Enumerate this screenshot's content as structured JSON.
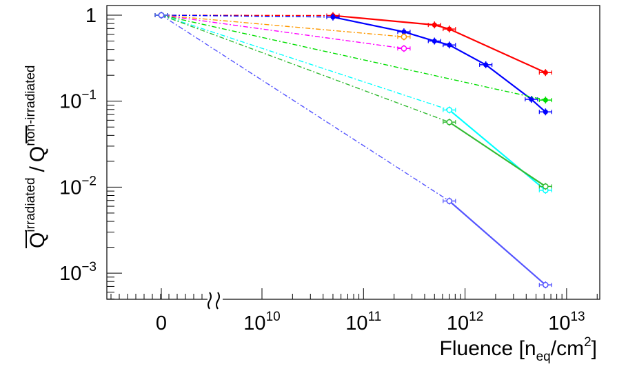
{
  "chart_data": {
    "type": "line",
    "title": "",
    "xlabel": {
      "main": "Fluence [n",
      "sub": "eq",
      "mid": "/cm",
      "sup": "2",
      "end": "]"
    },
    "ylabel": {
      "num": "Q",
      "num_sup": "irradiated",
      "slash": "/",
      "den": "Q",
      "den_sup": "non-irradiated"
    },
    "x_scale": "log with broken axis (0 shown left of break)",
    "y_scale": "log",
    "ylim": [
      0.0005,
      1.4
    ],
    "x_tick_labels": [
      {
        "value": 0,
        "text": "0"
      },
      {
        "value": 10000000000.0,
        "base": "10",
        "exp": "10"
      },
      {
        "value": 100000000000.0,
        "base": "10",
        "exp": "11"
      },
      {
        "value": 1000000000000.0,
        "base": "10",
        "exp": "12"
      },
      {
        "value": 10000000000000.0,
        "base": "10",
        "exp": "13"
      }
    ],
    "y_tick_labels": [
      {
        "value": 1,
        "text": "1"
      },
      {
        "value": 0.1,
        "base": "10",
        "exp": "−1"
      },
      {
        "value": 0.01,
        "base": "10",
        "exp": "−2"
      },
      {
        "value": 0.001,
        "base": "10",
        "exp": "−3"
      }
    ],
    "series": [
      {
        "color": "#ff0000",
        "marker": "filled",
        "points": [
          [
            0,
            1
          ],
          [
            50000000000.0,
            0.99
          ],
          [
            500000000000.0,
            0.77
          ],
          [
            700000000000.0,
            0.69
          ],
          [
            6200000000000.0,
            0.215
          ]
        ]
      },
      {
        "color": "#0000ff",
        "marker": "filled",
        "points": [
          [
            0,
            1
          ],
          [
            50000000000.0,
            0.95
          ],
          [
            250000000000.0,
            0.64
          ],
          [
            500000000000.0,
            0.5
          ],
          [
            700000000000.0,
            0.45
          ],
          [
            1600000000000.0,
            0.265
          ],
          [
            4500000000000.0,
            0.105
          ],
          [
            6200000000000.0,
            0.075
          ]
        ]
      },
      {
        "color": "#ff9900",
        "marker": "open",
        "points": [
          [
            0,
            1
          ],
          [
            250000000000.0,
            0.56
          ]
        ]
      },
      {
        "color": "#ff00ff",
        "marker": "open",
        "points": [
          [
            0,
            1
          ],
          [
            250000000000.0,
            0.41
          ]
        ]
      },
      {
        "color": "#00dd00",
        "marker": "filled",
        "points": [
          [
            0,
            1
          ],
          [
            6200000000000.0,
            0.103
          ]
        ]
      },
      {
        "color": "#00ffff",
        "marker": "open",
        "points": [
          [
            0,
            1
          ],
          [
            700000000000.0,
            0.079
          ],
          [
            6200000000000.0,
            0.0092
          ]
        ]
      },
      {
        "color": "#33bb33",
        "marker": "open",
        "points": [
          [
            0,
            1
          ],
          [
            700000000000.0,
            0.057
          ],
          [
            6200000000000.0,
            0.0102
          ]
        ]
      },
      {
        "color": "#5555ff",
        "marker": "open",
        "points": [
          [
            0,
            1
          ],
          [
            700000000000.0,
            0.0069
          ],
          [
            6200000000000.0,
            0.00073
          ]
        ]
      }
    ]
  }
}
